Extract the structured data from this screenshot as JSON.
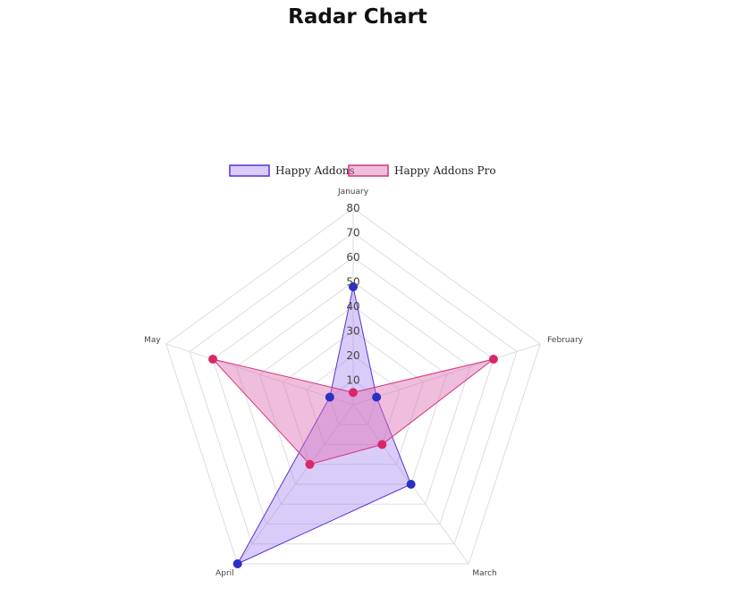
{
  "title": "Radar Chart",
  "chart_data": {
    "type": "radar",
    "title": "Radar Chart",
    "categories": [
      "January",
      "February",
      "March",
      "April",
      "May"
    ],
    "r_ticks": [
      10,
      20,
      30,
      40,
      50,
      60,
      70,
      80
    ],
    "r_range": [
      0,
      80
    ],
    "grid": true,
    "legend_position": "top",
    "series": [
      {
        "name": "Happy Addons",
        "values": [
          48,
          10,
          40,
          80,
          10
        ],
        "border_color": "#5b2fd6",
        "fill_color": "rgba(150,110,235,0.35)",
        "point_color": "#2b2fc6"
      },
      {
        "name": "Happy Addons Pro",
        "values": [
          5,
          60,
          20,
          30,
          60
        ],
        "border_color": "#d6337a",
        "fill_color": "rgba(222,110,180,0.45)",
        "point_color": "#d8286a"
      }
    ]
  }
}
